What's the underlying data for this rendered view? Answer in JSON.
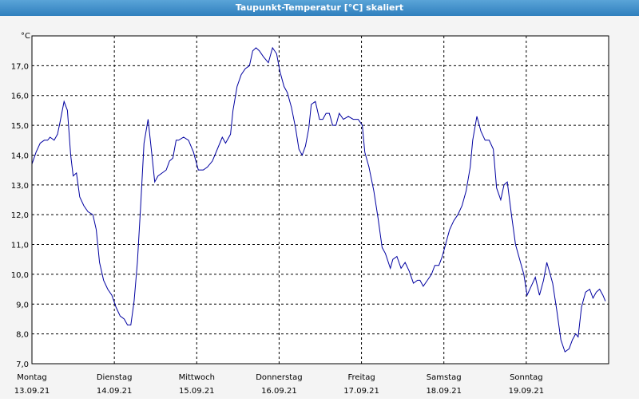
{
  "chart_data": {
    "type": "line",
    "title": "Taupunkt-Temperatur [°C] skaliert",
    "y_unit": "°C",
    "xlim": [
      0,
      7
    ],
    "xticks": [
      {
        "value": 0,
        "label": "Montag",
        "date": "13.09.21"
      },
      {
        "value": 1,
        "label": "Dienstag",
        "date": "14.09.21"
      },
      {
        "value": 2,
        "label": "Mittwoch",
        "date": "15.09.21"
      },
      {
        "value": 3,
        "label": "Donnerstag",
        "date": "16.09.21"
      },
      {
        "value": 4,
        "label": "Freitag",
        "date": "17.09.21"
      },
      {
        "value": 5,
        "label": "Samstag",
        "date": "18.09.21"
      },
      {
        "value": 6,
        "label": "Sonntag",
        "date": "19.09.21"
      },
      7
    ],
    "ylim": [
      7,
      18
    ],
    "yticks": [
      {
        "value": 7,
        "label": "7,0"
      },
      {
        "value": 8,
        "label": "8,0"
      },
      {
        "value": 9,
        "label": "9,0"
      },
      {
        "value": 10,
        "label": "10,0"
      },
      {
        "value": 11,
        "label": "11,0"
      },
      {
        "value": 12,
        "label": "12,0"
      },
      {
        "value": 13,
        "label": "13,0"
      },
      {
        "value": 14,
        "label": "14,0"
      },
      {
        "value": 15,
        "label": "15,0"
      },
      {
        "value": 16,
        "label": "16,0"
      },
      {
        "value": 17,
        "label": "17,0"
      }
    ],
    "grid": true,
    "series": [
      {
        "color": "#0000a0",
        "x": [
          0.0,
          0.05,
          0.1,
          0.15,
          0.19,
          0.22,
          0.27,
          0.31,
          0.34,
          0.39,
          0.43,
          0.47,
          0.5,
          0.54,
          0.58,
          0.63,
          0.68,
          0.74,
          0.78,
          0.82,
          0.87,
          0.92,
          0.97,
          1.02,
          1.07,
          1.12,
          1.16,
          1.2,
          1.24,
          1.28,
          1.32,
          1.36,
          1.41,
          1.46,
          1.49,
          1.53,
          1.58,
          1.63,
          1.67,
          1.71,
          1.75,
          1.78,
          1.84,
          1.9,
          1.96,
          2.02,
          2.08,
          2.13,
          2.19,
          2.25,
          2.31,
          2.35,
          2.41,
          2.44,
          2.49,
          2.54,
          2.59,
          2.64,
          2.68,
          2.72,
          2.76,
          2.81,
          2.87,
          2.92,
          2.97,
          3.01,
          3.06,
          3.1,
          3.15,
          3.2,
          3.24,
          3.28,
          3.32,
          3.36,
          3.39,
          3.44,
          3.49,
          3.53,
          3.57,
          3.61,
          3.65,
          3.69,
          3.73,
          3.78,
          3.84,
          3.9,
          3.96,
          4.01,
          4.04,
          4.09,
          4.15,
          4.2,
          4.25,
          4.29,
          4.35,
          4.38,
          4.43,
          4.48,
          4.53,
          4.58,
          4.63,
          4.68,
          4.71,
          4.75,
          4.8,
          4.85,
          4.89,
          4.94,
          4.98,
          5.02,
          5.07,
          5.12,
          5.17,
          5.22,
          5.27,
          5.32,
          5.35,
          5.4,
          5.45,
          5.5,
          5.55,
          5.6,
          5.64,
          5.69,
          5.73,
          5.77,
          5.82,
          5.87,
          5.92,
          5.97,
          6.01,
          6.06,
          6.11,
          6.16,
          6.21,
          6.25,
          6.29,
          6.32,
          6.37,
          6.42,
          6.47,
          6.52,
          6.56,
          6.6,
          6.63,
          6.67,
          6.72,
          6.77,
          6.81,
          6.85,
          6.89,
          6.93,
          6.96
        ],
        "values": [
          13.7,
          14.1,
          14.4,
          14.5,
          14.5,
          14.6,
          14.5,
          14.7,
          15.1,
          15.8,
          15.5,
          14.0,
          13.3,
          13.4,
          12.6,
          12.3,
          12.1,
          12.0,
          11.5,
          10.4,
          9.8,
          9.5,
          9.3,
          8.9,
          8.6,
          8.5,
          8.3,
          8.3,
          9.1,
          10.4,
          12.3,
          14.4,
          15.2,
          13.9,
          13.1,
          13.3,
          13.4,
          13.5,
          13.8,
          13.9,
          14.5,
          14.5,
          14.6,
          14.5,
          14.1,
          13.5,
          13.5,
          13.6,
          13.8,
          14.2,
          14.6,
          14.4,
          14.7,
          15.5,
          16.3,
          16.7,
          16.9,
          17.0,
          17.5,
          17.6,
          17.5,
          17.3,
          17.1,
          17.6,
          17.4,
          16.8,
          16.3,
          16.1,
          15.6,
          14.9,
          14.2,
          14.0,
          14.3,
          14.9,
          15.7,
          15.8,
          15.2,
          15.2,
          15.4,
          15.4,
          15.0,
          15.0,
          15.4,
          15.2,
          15.3,
          15.2,
          15.2,
          15.0,
          14.1,
          13.6,
          12.8,
          11.9,
          10.9,
          10.7,
          10.2,
          10.5,
          10.6,
          10.2,
          10.4,
          10.1,
          9.7,
          9.8,
          9.8,
          9.6,
          9.8,
          10.0,
          10.3,
          10.3,
          10.6,
          11.0,
          11.5,
          11.8,
          12.0,
          12.3,
          12.8,
          13.6,
          14.5,
          15.3,
          14.8,
          14.5,
          14.5,
          14.2,
          12.9,
          12.5,
          13.0,
          13.1,
          12.0,
          11.0,
          10.5,
          10.0,
          9.3,
          9.6,
          9.9,
          9.3,
          9.8,
          10.4,
          10.0,
          9.7,
          8.8,
          7.8,
          7.4,
          7.5,
          7.8,
          8.0,
          7.9,
          8.9,
          9.4,
          9.5,
          9.2,
          9.4,
          9.5,
          9.3,
          9.1
        ]
      }
    ]
  }
}
